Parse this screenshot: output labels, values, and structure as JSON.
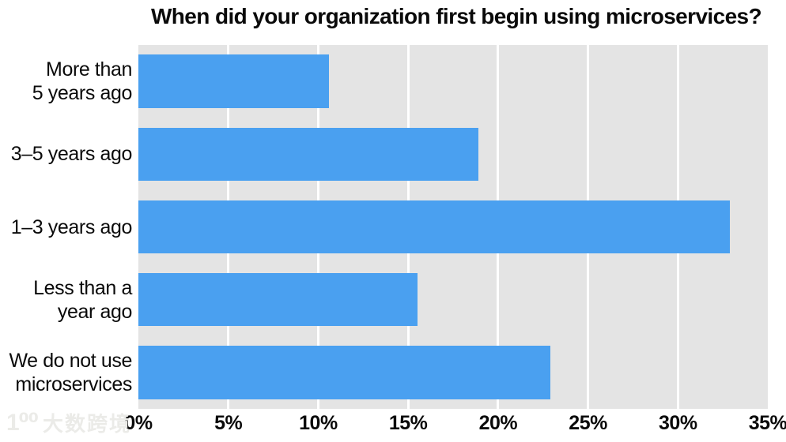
{
  "title": "When did your organization first begin using microservices?",
  "chart_data": {
    "type": "bar",
    "orientation": "horizontal",
    "title": "When did your organization first begin using microservices?",
    "categories": [
      "More than 5 years ago",
      "3–5 years ago",
      "1–3 years ago",
      "Less than a year ago",
      "We do not use microservices"
    ],
    "categories_display": [
      [
        "More than",
        "5 years ago"
      ],
      [
        "3–5 years ago"
      ],
      [
        "1–3 years ago"
      ],
      [
        "Less than a",
        "year ago"
      ],
      [
        "We do not use",
        "microservices"
      ]
    ],
    "values": [
      10.6,
      18.9,
      32.9,
      15.5,
      22.9
    ],
    "unit": "%",
    "xlim": [
      0,
      35
    ],
    "tick_step": 5,
    "tick_labels": [
      "0%",
      "5%",
      "10%",
      "15%",
      "20%",
      "25%",
      "30%",
      "35%"
    ],
    "xlabel": "",
    "ylabel": "",
    "grid": "vertical white lines every 5%",
    "legend": "none",
    "bar_color": "#4aa0f0",
    "plot_background": "#e4e4e4",
    "grid_color": "#ffffff",
    "text_color": "#0a0a0a"
  },
  "watermark": {
    "logo": "1⁰⁰",
    "text": "大数跨境"
  }
}
